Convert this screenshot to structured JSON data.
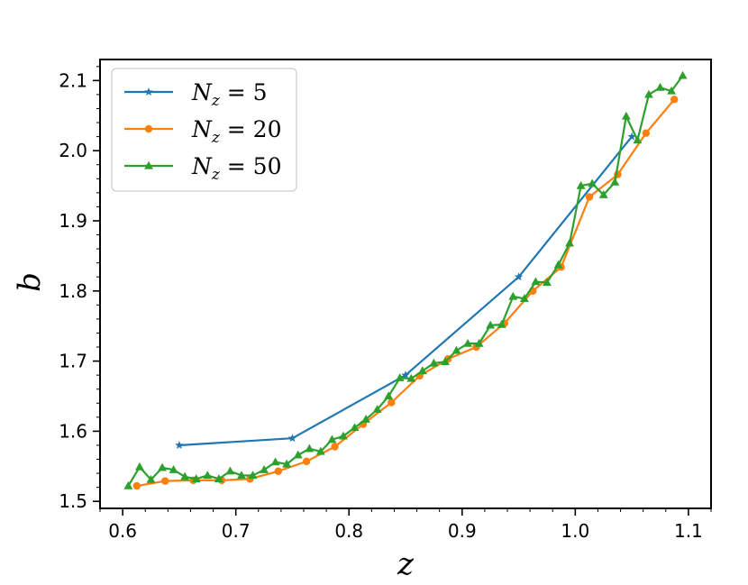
{
  "chart_data": {
    "type": "line",
    "xlabel": "z",
    "ylabel": "b",
    "xlim": [
      0.58,
      1.12
    ],
    "ylim": [
      1.49,
      2.13
    ],
    "xticks": [
      "0.6",
      "0.7",
      "0.8",
      "0.9",
      "1.0",
      "1.1"
    ],
    "yticks": [
      "1.5",
      "1.6",
      "1.7",
      "1.8",
      "1.9",
      "2.0",
      "2.1"
    ],
    "grid": false,
    "legend_position": "top-left",
    "series": [
      {
        "name": "N_z = 5",
        "legend": {
          "var": "N",
          "sub": "z",
          "rest": " = 5"
        },
        "color": "#1f77b4",
        "marker": "star",
        "x": [
          0.65,
          0.75,
          0.85,
          0.95,
          1.05
        ],
        "y": [
          1.58,
          1.59,
          1.68,
          1.82,
          2.02
        ]
      },
      {
        "name": "N_z = 20",
        "legend": {
          "var": "N",
          "sub": "z",
          "rest": " = 20"
        },
        "color": "#ff7f0e",
        "marker": "circle",
        "x": [
          0.6125,
          0.6375,
          0.6625,
          0.6875,
          0.7125,
          0.7375,
          0.7625,
          0.7875,
          0.8125,
          0.8375,
          0.8625,
          0.8875,
          0.9125,
          0.9375,
          0.9625,
          0.9875,
          1.0125,
          1.0375,
          1.0625,
          1.0875
        ],
        "y": [
          1.522,
          1.529,
          1.53,
          1.53,
          1.532,
          1.543,
          1.557,
          1.578,
          1.61,
          1.641,
          1.679,
          1.703,
          1.72,
          1.754,
          1.8,
          1.834,
          1.934,
          1.966,
          2.025,
          2.073
        ]
      },
      {
        "name": "N_z = 50",
        "legend": {
          "var": "N",
          "sub": "z",
          "rest": " = 50"
        },
        "color": "#2ca02c",
        "marker": "triangle",
        "x": [
          0.605,
          0.615,
          0.625,
          0.635,
          0.645,
          0.655,
          0.665,
          0.675,
          0.685,
          0.695,
          0.705,
          0.715,
          0.725,
          0.735,
          0.745,
          0.755,
          0.765,
          0.775,
          0.785,
          0.795,
          0.805,
          0.815,
          0.825,
          0.835,
          0.845,
          0.855,
          0.865,
          0.875,
          0.885,
          0.895,
          0.905,
          0.915,
          0.925,
          0.935,
          0.945,
          0.955,
          0.965,
          0.975,
          0.985,
          0.995,
          1.005,
          1.015,
          1.025,
          1.035,
          1.045,
          1.055,
          1.065,
          1.075,
          1.085,
          1.095
        ],
        "y": [
          1.522,
          1.549,
          1.531,
          1.548,
          1.545,
          1.535,
          1.532,
          1.537,
          1.532,
          1.543,
          1.537,
          1.537,
          1.545,
          1.556,
          1.553,
          1.566,
          1.575,
          1.571,
          1.588,
          1.593,
          1.605,
          1.617,
          1.631,
          1.65,
          1.676,
          1.675,
          1.686,
          1.697,
          1.699,
          1.715,
          1.725,
          1.725,
          1.751,
          1.752,
          1.792,
          1.789,
          1.813,
          1.812,
          1.837,
          1.868,
          1.95,
          1.953,
          1.937,
          1.955,
          2.049,
          2.015,
          2.08,
          2.09,
          2.085,
          2.107
        ]
      }
    ]
  }
}
